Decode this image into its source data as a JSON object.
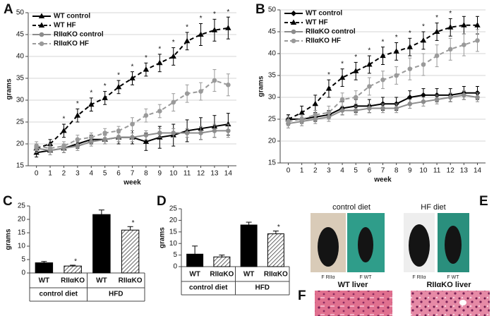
{
  "chart_data": [
    {
      "type": "line",
      "panel_label": "A",
      "xlabel": "week",
      "ylabel": "grams",
      "x": [
        0,
        1,
        2,
        3,
        4,
        5,
        6,
        7,
        8,
        9,
        10,
        11,
        12,
        13,
        14
      ],
      "xlim": [
        -0.6,
        14.6
      ],
      "xticks": [
        0,
        1,
        2,
        3,
        4,
        5,
        6,
        7,
        8,
        9,
        10,
        11,
        12,
        13,
        14
      ],
      "ylim": [
        15,
        50
      ],
      "yticks": [
        15,
        20,
        25,
        30,
        35,
        40,
        45,
        50
      ],
      "grid": true,
      "legend": "upper left",
      "series": [
        {
          "name": "WT control",
          "color": "#000000",
          "dash": false,
          "marker": "triangle",
          "values": [
            18,
            18.5,
            19,
            20,
            21,
            21,
            21.5,
            21.5,
            20.5,
            21.5,
            22,
            23,
            23.5,
            24,
            24.5
          ],
          "errors": [
            1,
            1,
            1,
            1,
            1,
            1,
            1.5,
            1.5,
            2,
            2.5,
            2.5,
            2.5,
            2.5,
            2.5,
            2.5
          ]
        },
        {
          "name": "WT HF",
          "color": "#000000",
          "dash": true,
          "marker": "triangle",
          "values": [
            19,
            20,
            23,
            26.5,
            29,
            30.5,
            33,
            35,
            37,
            38.5,
            40,
            43.5,
            45,
            46,
            46.5
          ],
          "errors": [
            1,
            1,
            1.5,
            1.5,
            1.5,
            1.5,
            1.5,
            1.5,
            1.5,
            2,
            2,
            2,
            2.5,
            2.5,
            2.5
          ]
        },
        {
          "name": "RIIαKO control",
          "color": "#8c8c8c",
          "dash": false,
          "marker": "circle",
          "values": [
            19,
            18.5,
            19,
            19.5,
            20.5,
            21,
            21.5,
            21.5,
            22,
            22.5,
            22.5,
            22.5,
            22.5,
            23,
            23
          ],
          "errors": [
            1,
            1,
            1,
            1,
            1,
            1,
            1,
            1,
            1,
            1,
            1,
            1,
            1.5,
            1.5,
            1.5
          ]
        },
        {
          "name": "RIIαKO HF",
          "color": "#9a9a9a",
          "dash": true,
          "marker": "circle",
          "values": [
            19.5,
            19,
            19.5,
            21,
            21.5,
            22.5,
            23,
            24.5,
            26.5,
            27.5,
            29.5,
            31.5,
            32,
            34.5,
            33.5
          ],
          "errors": [
            1,
            1,
            1,
            1,
            1,
            1,
            1,
            1.5,
            1.5,
            1.5,
            2,
            2,
            2,
            2.5,
            2.5
          ]
        }
      ],
      "sig_series": 1,
      "sig": [
        null,
        null,
        "*",
        "*",
        "*",
        "*",
        "*",
        "*",
        "*",
        "*",
        "*",
        "*",
        "*",
        "*",
        "*"
      ]
    },
    {
      "type": "line",
      "panel_label": "B",
      "xlabel": "week",
      "ylabel": "grams",
      "x": [
        0,
        1,
        2,
        3,
        4,
        5,
        6,
        7,
        8,
        9,
        10,
        11,
        12,
        13,
        14
      ],
      "xlim": [
        -0.6,
        14.6
      ],
      "xticks": [
        0,
        1,
        2,
        3,
        4,
        5,
        6,
        7,
        8,
        9,
        10,
        11,
        12,
        13,
        14
      ],
      "ylim": [
        15,
        50
      ],
      "yticks": [
        15,
        20,
        25,
        30,
        35,
        40,
        45,
        50
      ],
      "grid": true,
      "legend": "upper left",
      "series": [
        {
          "name": "WT control",
          "color": "#000000",
          "dash": false,
          "marker": "diamond",
          "values": [
            25,
            25,
            25.5,
            26,
            27.5,
            28,
            28,
            28.5,
            28.5,
            30,
            30.5,
            30.5,
            30.5,
            31,
            31
          ],
          "errors": [
            1,
            1,
            1,
            1,
            1.5,
            1.5,
            1.5,
            1.5,
            1.5,
            1.5,
            1.5,
            1.5,
            1.5,
            1.5,
            1.5
          ]
        },
        {
          "name": "WT HF",
          "color": "#000000",
          "dash": true,
          "marker": "triangle",
          "values": [
            25,
            26.5,
            28.5,
            32,
            34.5,
            36,
            37.5,
            39.5,
            40.5,
            41.5,
            43,
            45,
            46,
            46.5,
            46.5
          ],
          "errors": [
            1,
            1.5,
            2,
            2,
            2,
            2,
            2,
            2,
            2,
            2,
            2,
            2,
            2,
            2,
            2
          ]
        },
        {
          "name": "RIIαKO control",
          "color": "#8c8c8c",
          "dash": false,
          "marker": "circle",
          "values": [
            24,
            24.5,
            25,
            25.5,
            27,
            27,
            27.5,
            27.5,
            27.5,
            28.5,
            29,
            29.5,
            30,
            30.5,
            30
          ],
          "errors": [
            1,
            1,
            1,
            1,
            1,
            1,
            1,
            1,
            1,
            1,
            1,
            1,
            1,
            1,
            1
          ]
        },
        {
          "name": "RIIαKO HF",
          "color": "#9a9a9a",
          "dash": true,
          "marker": "circle",
          "values": [
            24.5,
            25,
            26,
            26.5,
            29.5,
            30,
            32.5,
            34,
            35,
            36.5,
            37.5,
            39.5,
            41,
            42,
            43
          ],
          "errors": [
            1,
            1,
            1,
            1.5,
            1.5,
            1.5,
            2,
            2,
            2,
            2.5,
            2.5,
            2.5,
            2.5,
            2.5,
            2.5
          ]
        }
      ],
      "sig_series": 1,
      "sig": [
        null,
        null,
        null,
        "*",
        "*",
        "*",
        "*",
        "*",
        "*",
        "*",
        "*",
        "*",
        "*",
        null,
        null
      ]
    },
    {
      "type": "bar",
      "panel_label": "C",
      "ylabel": "grams",
      "categories": [
        "WT",
        "RIIαKO",
        "WT",
        "RIIαKO"
      ],
      "groups": [
        "control diet",
        "HFD"
      ],
      "values": [
        3.8,
        2.6,
        21.8,
        16
      ],
      "errors": [
        0.5,
        0.3,
        1.7,
        1.3
      ],
      "patterns": [
        "solid",
        "hatch",
        "solid",
        "hatch"
      ],
      "color": "#000000",
      "ylim": [
        0,
        25
      ],
      "yticks": [
        0,
        5,
        10,
        15,
        20,
        25
      ],
      "sig": [
        null,
        "*",
        null,
        "*"
      ]
    },
    {
      "type": "bar",
      "panel_label": "D",
      "ylabel": "grams",
      "categories": [
        "WT",
        "RIIαKO",
        "WT",
        "RIIαKO"
      ],
      "groups": [
        "control diet",
        "HFD"
      ],
      "values": [
        5.4,
        4.2,
        18,
        14.2
      ],
      "errors": [
        3.5,
        0.8,
        1.2,
        1.2
      ],
      "patterns": [
        "solid",
        "hatch",
        "solid",
        "hatch"
      ],
      "color": "#000000",
      "ylim": [
        0,
        25
      ],
      "yticks": [
        0,
        5,
        10,
        15,
        20,
        25
      ],
      "sig": [
        null,
        null,
        null,
        "*"
      ]
    }
  ],
  "photo_panels": [
    {
      "panel_label": "E",
      "captions": [
        "control diet",
        "HF diet"
      ],
      "photo_labels": [
        "F RIIα",
        "F WT",
        "F RIIα",
        "F WT"
      ]
    },
    {
      "panel_label": "F",
      "captions": [
        "WT liver",
        "RIIαKO liver"
      ]
    }
  ]
}
